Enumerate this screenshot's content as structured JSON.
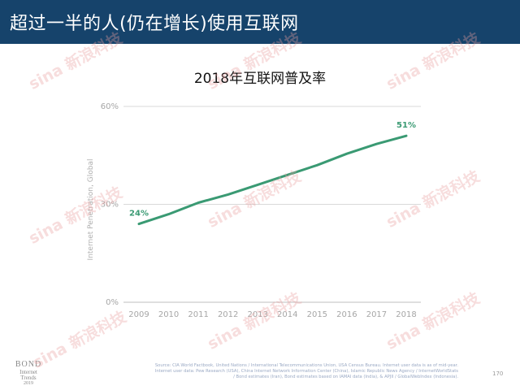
{
  "header": {
    "title": "超过一半的人(仍在增长)使用互联网"
  },
  "footer": {
    "brand_line1": "BOND",
    "brand_line2": "Internet Trends",
    "brand_line3": "2019",
    "source_lines": [
      "Source: CIA World Factbook, United Nations / International Telecommunications Union, USA Census Bureau. Internet user data is as of mid-year.",
      "Internet user data: Pew Research (USA), China Internet Network Information Center (China), Islamic Republic News Agency / InternetWorldStats",
      "/ Bond estimates (Iran), Bond estimates based on IAMAI data (India), & APJII / GlobalWebIndex (Indonesia)."
    ],
    "page_number": "170"
  },
  "watermark": {
    "text": "sina 新浪科技"
  },
  "chart_data": {
    "type": "line",
    "title": "2018年互联网普及率",
    "ylabel": "Internet Penetration, Global",
    "x": [
      "2009",
      "2010",
      "2011",
      "2012",
      "2013",
      "2014",
      "2015",
      "2016",
      "2017",
      "2018"
    ],
    "series": [
      {
        "values": [
          24,
          27,
          30.5,
          33,
          36,
          39,
          42,
          45.5,
          48.5,
          51
        ]
      }
    ],
    "yticks": [
      "0%",
      "30%",
      "60%"
    ],
    "ylim": [
      0,
      60
    ],
    "data_labels": [
      {
        "x": "2009",
        "text": "24%"
      },
      {
        "x": "2018",
        "text": "51%"
      }
    ],
    "grid": true,
    "line_color": "#3a9a73",
    "grid_color": "#d9d9d9"
  }
}
